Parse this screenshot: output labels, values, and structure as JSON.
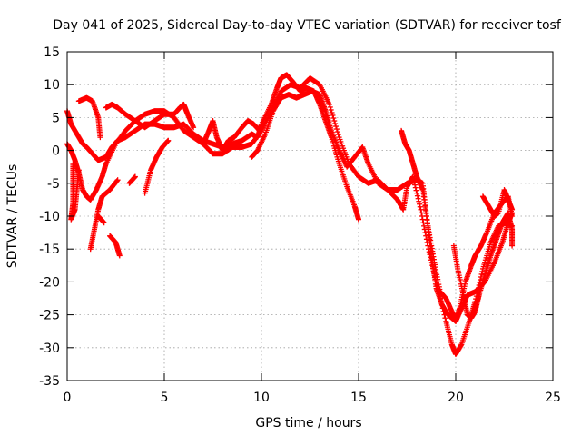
{
  "chart_data": {
    "type": "scatter",
    "title": "Day 041 of 2025, Sidereal Day-to-day VTEC variation (SDTVAR) for receiver tosf",
    "xlabel": "GPS time / hours",
    "ylabel": "SDTVAR / TECUs",
    "xlim": [
      0,
      25
    ],
    "ylim": [
      -35,
      15
    ],
    "xticks": [
      0,
      5,
      10,
      15,
      20,
      25
    ],
    "yticks": [
      -35,
      -30,
      -25,
      -20,
      -15,
      -10,
      -5,
      0,
      5,
      10,
      15
    ],
    "grid": true,
    "marker": "+",
    "color": "#ff0000",
    "series": [
      {
        "name": "track-1",
        "points": [
          [
            0.0,
            6.0
          ],
          [
            0.2,
            4.0
          ],
          [
            0.5,
            2.5
          ],
          [
            0.8,
            1.0
          ],
          [
            1.0,
            0.5
          ],
          [
            1.3,
            -0.5
          ],
          [
            1.6,
            -1.5
          ],
          [
            2.0,
            -1.0
          ],
          [
            2.3,
            0.5
          ],
          [
            2.6,
            1.5
          ],
          [
            3.0,
            2.0
          ],
          [
            3.5,
            3.0
          ],
          [
            4.0,
            4.0
          ],
          [
            4.5,
            4.0
          ],
          [
            5.0,
            3.5
          ],
          [
            5.5,
            3.5
          ],
          [
            6.0,
            4.0
          ],
          [
            6.5,
            2.5
          ],
          [
            7.0,
            1.5
          ],
          [
            7.5,
            1.0
          ],
          [
            8.0,
            0.5
          ],
          [
            8.5,
            1.0
          ],
          [
            9.0,
            1.5
          ],
          [
            9.5,
            2.5
          ],
          [
            9.8,
            2.0
          ],
          [
            10.0,
            4.0
          ],
          [
            10.5,
            7.0
          ],
          [
            10.8,
            9.5
          ],
          [
            11.0,
            11.0
          ],
          [
            11.3,
            11.5
          ],
          [
            11.6,
            10.5
          ],
          [
            12.0,
            9.0
          ],
          [
            12.3,
            9.5
          ],
          [
            12.7,
            9.0
          ],
          [
            13.0,
            7.0
          ],
          [
            13.3,
            4.5
          ],
          [
            13.6,
            2.0
          ],
          [
            14.0,
            -2.0
          ],
          [
            14.4,
            -5.5
          ],
          [
            14.8,
            -8.5
          ],
          [
            15.0,
            -10.5
          ]
        ]
      },
      {
        "name": "track-2",
        "points": [
          [
            0.0,
            1.0
          ],
          [
            0.2,
            0.0
          ],
          [
            0.4,
            -1.5
          ],
          [
            0.6,
            -3.5
          ],
          [
            0.8,
            -6.0
          ],
          [
            1.0,
            -7.0
          ],
          [
            1.2,
            -7.5
          ],
          [
            1.5,
            -6.0
          ],
          [
            1.8,
            -4.0
          ],
          [
            2.0,
            -2.0
          ],
          [
            2.5,
            1.0
          ],
          [
            3.0,
            3.0
          ],
          [
            3.5,
            4.5
          ],
          [
            4.0,
            5.5
          ],
          [
            4.5,
            6.0
          ],
          [
            5.0,
            6.0
          ],
          [
            5.5,
            5.0
          ],
          [
            6.0,
            3.0
          ],
          [
            6.5,
            2.0
          ],
          [
            7.0,
            1.0
          ],
          [
            7.5,
            -0.5
          ],
          [
            8.0,
            -0.5
          ],
          [
            8.5,
            0.5
          ],
          [
            9.0,
            0.5
          ],
          [
            9.5,
            1.0
          ],
          [
            10.0,
            3.0
          ],
          [
            10.5,
            6.0
          ],
          [
            11.0,
            9.0
          ],
          [
            11.5,
            10.0
          ],
          [
            12.0,
            9.5
          ],
          [
            12.5,
            11.0
          ],
          [
            13.0,
            10.0
          ],
          [
            13.5,
            7.0
          ],
          [
            14.0,
            2.0
          ],
          [
            14.5,
            -2.0
          ],
          [
            15.0,
            -4.0
          ],
          [
            15.5,
            -5.0
          ],
          [
            16.0,
            -4.5
          ],
          [
            16.5,
            -6.0
          ],
          [
            17.0,
            -6.0
          ],
          [
            17.5,
            -5.0
          ],
          [
            18.0,
            -4.5
          ],
          [
            18.3,
            -5.0
          ],
          [
            18.5,
            -10.0
          ],
          [
            18.8,
            -17.0
          ],
          [
            19.0,
            -21.0
          ],
          [
            19.3,
            -23.5
          ],
          [
            19.6,
            -25.0
          ],
          [
            20.0,
            -26.0
          ],
          [
            20.3,
            -24.0
          ],
          [
            20.6,
            -22.0
          ],
          [
            21.0,
            -21.5
          ],
          [
            21.5,
            -20.0
          ],
          [
            22.0,
            -17.0
          ],
          [
            22.4,
            -14.0
          ],
          [
            22.7,
            -11.0
          ],
          [
            22.9,
            -9.5
          ]
        ]
      },
      {
        "name": "track-3",
        "points": [
          [
            0.3,
            -2.0
          ],
          [
            0.3,
            -5.0
          ],
          [
            0.3,
            -8.0
          ],
          [
            0.2,
            -10.5
          ],
          [
            0.4,
            -9.0
          ],
          [
            0.5,
            -6.0
          ],
          [
            0.6,
            -3.0
          ]
        ]
      },
      {
        "name": "track-4",
        "points": [
          [
            0.6,
            7.5
          ],
          [
            1.0,
            8.0
          ],
          [
            1.3,
            7.5
          ],
          [
            1.6,
            5.0
          ],
          [
            1.7,
            2.0
          ]
        ]
      },
      {
        "name": "track-5",
        "points": [
          [
            2.0,
            6.5
          ],
          [
            2.3,
            7.0
          ],
          [
            2.6,
            6.5
          ],
          [
            3.0,
            5.5
          ],
          [
            3.5,
            4.5
          ],
          [
            4.0,
            3.5
          ],
          [
            4.5,
            4.5
          ],
          [
            5.0,
            5.5
          ],
          [
            5.5,
            5.5
          ],
          [
            5.8,
            6.5
          ],
          [
            6.0,
            7.0
          ],
          [
            6.2,
            5.5
          ],
          [
            6.5,
            3.5
          ]
        ]
      },
      {
        "name": "track-6",
        "points": [
          [
            1.2,
            -15.0
          ],
          [
            1.4,
            -12.0
          ],
          [
            1.6,
            -9.0
          ],
          [
            1.8,
            -7.0
          ],
          [
            2.2,
            -6.0
          ],
          [
            2.6,
            -4.5
          ]
        ]
      },
      {
        "name": "track-7",
        "points": [
          [
            1.6,
            -10.0
          ],
          [
            1.9,
            -11.0
          ]
        ]
      },
      {
        "name": "track-8",
        "points": [
          [
            2.2,
            -13.0
          ],
          [
            2.5,
            -14.0
          ],
          [
            2.7,
            -16.0
          ]
        ]
      },
      {
        "name": "track-9",
        "points": [
          [
            3.2,
            -5.0
          ],
          [
            3.5,
            -4.0
          ]
        ]
      },
      {
        "name": "track-10",
        "points": [
          [
            4.0,
            -6.5
          ],
          [
            4.3,
            -3.0
          ],
          [
            4.6,
            -1.0
          ],
          [
            4.9,
            0.5
          ],
          [
            5.2,
            1.5
          ]
        ]
      },
      {
        "name": "track-11",
        "points": [
          [
            7.0,
            1.0
          ],
          [
            7.3,
            3.0
          ],
          [
            7.5,
            4.5
          ],
          [
            7.7,
            2.0
          ],
          [
            8.0,
            0.0
          ],
          [
            8.3,
            1.5
          ],
          [
            8.6,
            2.0
          ],
          [
            9.0,
            3.5
          ],
          [
            9.3,
            4.5
          ],
          [
            9.6,
            4.0
          ],
          [
            9.9,
            3.0
          ]
        ]
      },
      {
        "name": "track-12",
        "points": [
          [
            9.5,
            -1.0
          ],
          [
            9.8,
            0.0
          ],
          [
            10.2,
            2.5
          ],
          [
            10.6,
            6.0
          ],
          [
            11.0,
            8.0
          ],
          [
            11.4,
            8.5
          ],
          [
            11.8,
            8.0
          ],
          [
            12.2,
            8.5
          ],
          [
            12.6,
            9.0
          ],
          [
            13.0,
            8.5
          ],
          [
            13.3,
            6.0
          ],
          [
            13.6,
            3.0
          ],
          [
            14.0,
            0.0
          ],
          [
            14.4,
            -2.5
          ],
          [
            14.8,
            -1.0
          ],
          [
            15.2,
            0.5
          ],
          [
            15.5,
            -2.0
          ],
          [
            16.0,
            -5.0
          ],
          [
            16.5,
            -6.0
          ],
          [
            17.0,
            -7.5
          ],
          [
            17.3,
            -9.0
          ],
          [
            17.5,
            -5.5
          ],
          [
            17.8,
            -4.0
          ],
          [
            18.2,
            -9.0
          ],
          [
            18.6,
            -15.0
          ],
          [
            19.0,
            -20.0
          ],
          [
            19.5,
            -26.0
          ],
          [
            19.8,
            -29.5
          ],
          [
            20.0,
            -31.0
          ],
          [
            20.3,
            -29.5
          ],
          [
            20.7,
            -26.0
          ],
          [
            21.0,
            -23.0
          ],
          [
            21.4,
            -18.0
          ],
          [
            21.8,
            -14.0
          ],
          [
            22.2,
            -11.5
          ],
          [
            22.6,
            -11.0
          ],
          [
            22.9,
            -11.5
          ]
        ]
      },
      {
        "name": "track-13",
        "points": [
          [
            17.2,
            3.0
          ],
          [
            17.4,
            1.0
          ],
          [
            17.6,
            0.0
          ],
          [
            17.8,
            -2.0
          ],
          [
            18.0,
            -4.0
          ],
          [
            18.3,
            -6.0
          ],
          [
            18.6,
            -12.0
          ],
          [
            18.9,
            -17.0
          ],
          [
            19.2,
            -21.5
          ],
          [
            19.5,
            -22.5
          ],
          [
            19.8,
            -24.5
          ],
          [
            20.0,
            -26.0
          ],
          [
            20.2,
            -24.0
          ],
          [
            20.5,
            -20.0
          ],
          [
            20.8,
            -17.5
          ],
          [
            21.0,
            -16.0
          ],
          [
            21.3,
            -14.5
          ],
          [
            21.6,
            -12.5
          ],
          [
            22.0,
            -9.5
          ],
          [
            22.4,
            -8.0
          ],
          [
            22.7,
            -7.0
          ],
          [
            22.9,
            -10.0
          ]
        ]
      },
      {
        "name": "track-14",
        "points": [
          [
            19.9,
            -14.5
          ],
          [
            20.1,
            -18.0
          ],
          [
            20.4,
            -22.0
          ],
          [
            20.6,
            -25.0
          ],
          [
            20.8,
            -25.5
          ],
          [
            21.0,
            -24.5
          ],
          [
            21.2,
            -22.0
          ]
        ]
      },
      {
        "name": "track-15",
        "points": [
          [
            20.9,
            -25.0
          ],
          [
            21.2,
            -22.0
          ],
          [
            21.5,
            -19.0
          ],
          [
            21.8,
            -16.0
          ],
          [
            22.1,
            -13.5
          ],
          [
            22.4,
            -11.0
          ],
          [
            22.7,
            -9.5
          ],
          [
            22.9,
            -12.0
          ],
          [
            22.9,
            -14.5
          ]
        ]
      },
      {
        "name": "track-16",
        "points": [
          [
            21.4,
            -7.0
          ],
          [
            21.7,
            -8.5
          ],
          [
            22.0,
            -10.0
          ],
          [
            22.2,
            -9.5
          ],
          [
            22.5,
            -6.0
          ],
          [
            22.7,
            -7.5
          ],
          [
            22.9,
            -9.0
          ]
        ]
      }
    ]
  }
}
